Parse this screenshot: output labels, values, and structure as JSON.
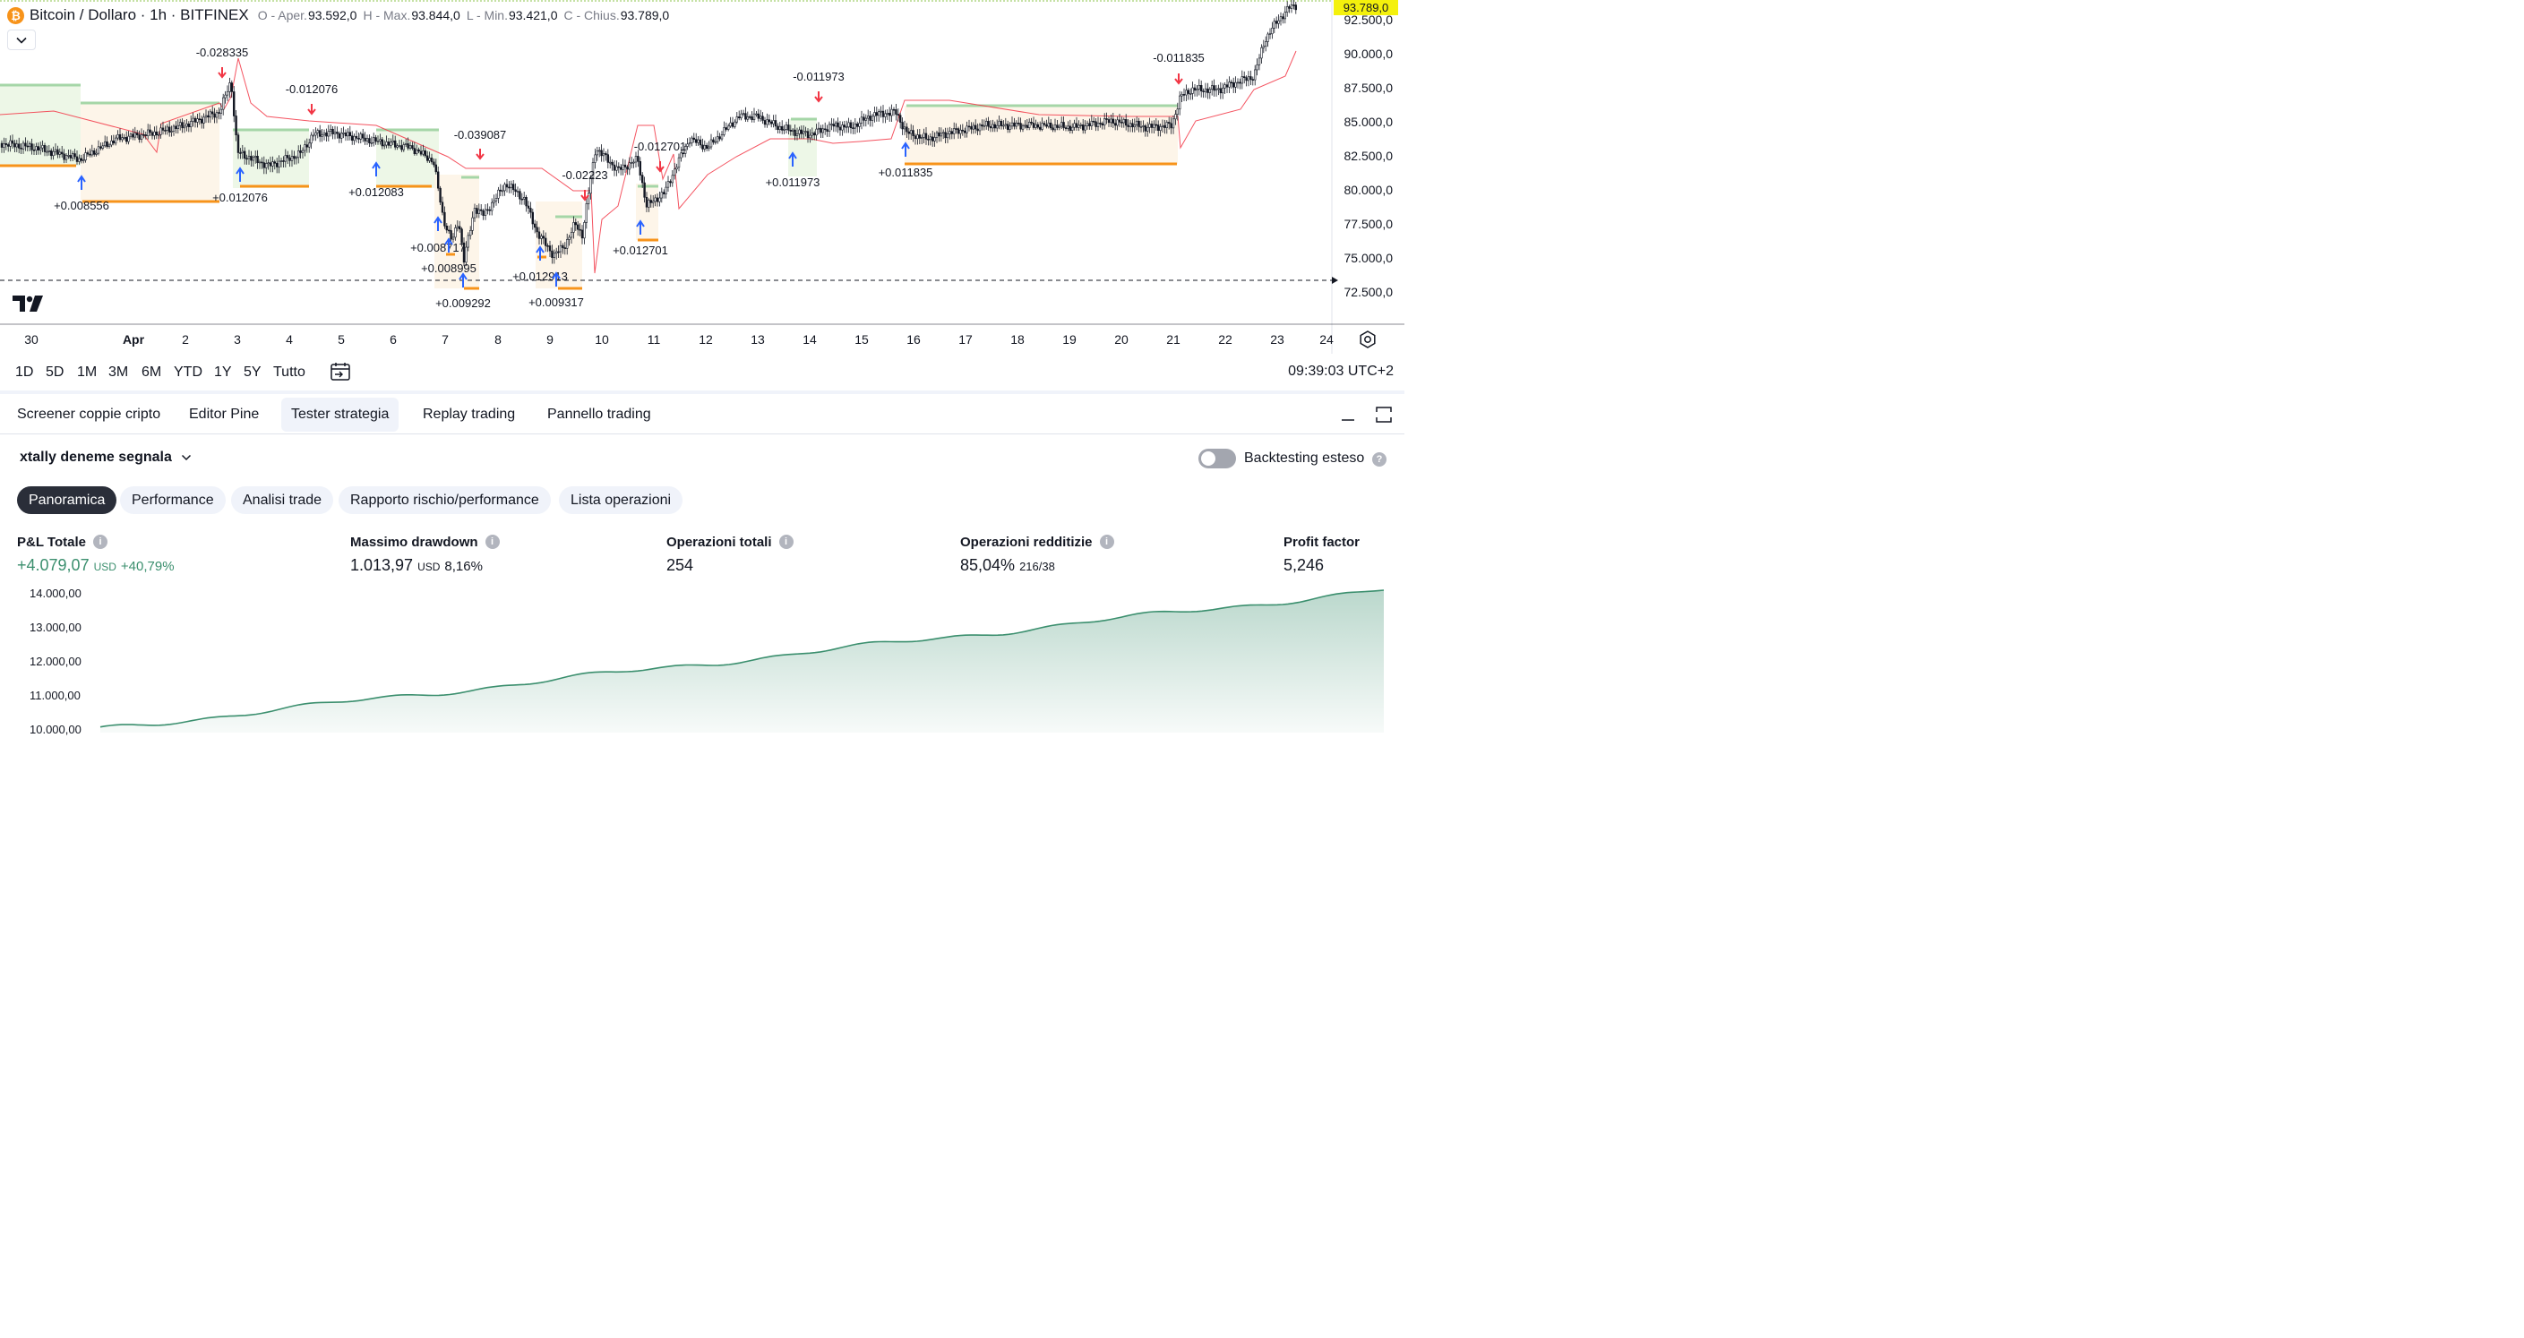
{
  "legend": {
    "symbol": "Bitcoin / Dollaro · 1h · BITFINEX",
    "open_label": "O - Aper.",
    "open": "93.592,0",
    "high_label": "H - Max.",
    "high": "93.844,0",
    "low_label": "L - Min.",
    "low": "93.421,0",
    "close_label": "C - Chius.",
    "close": "93.789,0"
  },
  "price_axis": {
    "last_price": "93.789,0",
    "ticks": [
      "92.500,0",
      "90.000,0",
      "87.500,0",
      "85.000,0",
      "82.500,0",
      "80.000,0",
      "77.500,0",
      "75.000,0",
      "72.500,0"
    ]
  },
  "time_axis": {
    "ticks": [
      "30",
      "Apr",
      "2",
      "3",
      "4",
      "5",
      "6",
      "7",
      "8",
      "9",
      "10",
      "11",
      "12",
      "13",
      "14",
      "15",
      "16",
      "17",
      "18",
      "19",
      "20",
      "21",
      "22",
      "23",
      "24"
    ]
  },
  "trade_labels": [
    "-0.028335",
    "-0.012076",
    "-0.039087",
    "-0.02223",
    "-0.012701",
    "-0.011973",
    "-0.011835",
    "+0.008556",
    "+0.012076",
    "+0.012083",
    "+0.008717",
    "+0.008995",
    "+0.012913",
    "+0.009292",
    "+0.009317",
    "+0.012701",
    "+0.011973",
    "+0.011835"
  ],
  "range_bar": {
    "buttons": [
      "1D",
      "5D",
      "1M",
      "3M",
      "6M",
      "YTD",
      "1Y",
      "5Y",
      "Tutto"
    ],
    "clock": "09:39:03 UTC+2"
  },
  "bottom_tabs": [
    "Screener coppie cripto",
    "Editor Pine",
    "Tester strategia",
    "Replay trading",
    "Pannello trading"
  ],
  "active_bottom_tab": "Tester strategia",
  "strategy": {
    "name": "xtally deneme segnala",
    "toggle_label": "Backtesting esteso",
    "toggle_on": false
  },
  "sub_tabs": [
    "Panoramica",
    "Performance",
    "Analisi trade",
    "Rapporto rischio/performance",
    "Lista operazioni"
  ],
  "active_sub_tab": "Panoramica",
  "metrics": {
    "pnl": {
      "title": "P&L Totale",
      "value": "+4.079,07",
      "unit": "USD",
      "pct": "+40,79%"
    },
    "drawdown": {
      "title": "Massimo drawdown",
      "value": "1.013,97",
      "unit": "USD",
      "pct": "8,16%"
    },
    "trades": {
      "title": "Operazioni totali",
      "value": "254"
    },
    "profitable": {
      "title": "Operazioni redditizie",
      "value": "85,04%",
      "detail": "216/38"
    },
    "profit_factor": {
      "title": "Profit factor",
      "value": "5,246"
    }
  },
  "equity_axis": [
    "14.000,00",
    "13.000,00",
    "12.000,00",
    "11.000,00",
    "10.000,00"
  ],
  "colors": {
    "accent_green": "#3b8f6e",
    "sell_red": "#f23645",
    "buy_blue": "#2962ff",
    "stop_orange": "#f7931a",
    "tp_green": "#b7e0a5",
    "last_price_yellow": "#f4f10c"
  }
}
